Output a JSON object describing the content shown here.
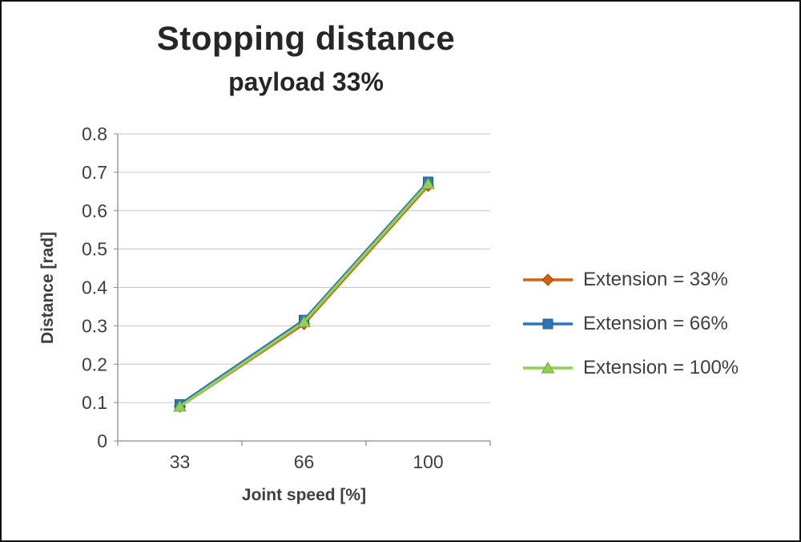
{
  "frame": {
    "background": "#FFFFFF",
    "border_color": "#111111"
  },
  "chart_data": {
    "type": "line",
    "title": "Stopping distance",
    "subtitle": "payload 33%",
    "xlabel": "Joint speed [%]",
    "ylabel": "Distance [rad]",
    "categories": [
      "33",
      "66",
      "100"
    ],
    "ylim": [
      0,
      0.8
    ],
    "ytick_labels": [
      "0",
      "0.1",
      "0.2",
      "0.3",
      "0.4",
      "0.5",
      "0.6",
      "0.7",
      "0.8"
    ],
    "grid": "horizontal",
    "legend_position": "right",
    "series": [
      {
        "name": "Extension = 33%",
        "marker": "diamond",
        "color": "#D2600E",
        "marker_border": "#A34A08",
        "values": [
          0.09,
          0.305,
          0.665
        ]
      },
      {
        "name": "Extension = 66%",
        "marker": "square",
        "color": "#2E75B6",
        "marker_border": "#1F5C94",
        "values": [
          0.095,
          0.315,
          0.675
        ]
      },
      {
        "name": "Extension = 100%",
        "marker": "triangle",
        "color": "#92D050",
        "marker_border": "#76A83C",
        "values": [
          0.09,
          0.31,
          0.67
        ]
      }
    ],
    "colors": {
      "gridline": "#C6C6C6",
      "axis": "#8C8C8C",
      "text": "#3F3F3F",
      "title": "#262626"
    }
  }
}
